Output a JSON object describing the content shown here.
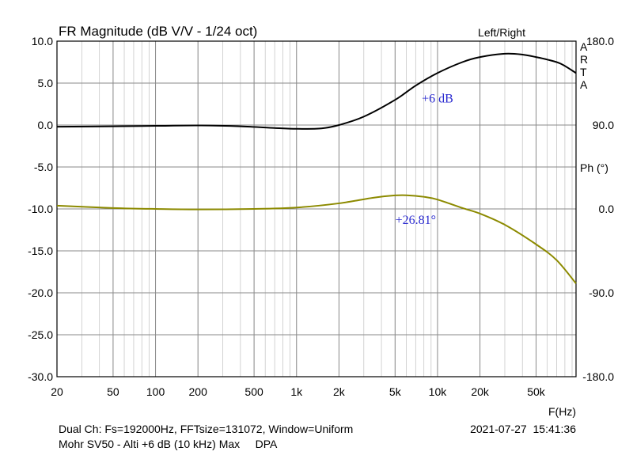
{
  "chart_data": {
    "type": "line",
    "title": "FR Magnitude (dB V/V - 1/24 oct)",
    "legend": "Left/Right",
    "brand": "ARTA",
    "xlabel": "F(Hz)",
    "xscale": "log",
    "xlim": [
      20,
      96000
    ],
    "x_ticks": [
      {
        "value": 20,
        "label": "20"
      },
      {
        "value": 50,
        "label": "50"
      },
      {
        "value": 100,
        "label": "100"
      },
      {
        "value": 200,
        "label": "200"
      },
      {
        "value": 500,
        "label": "500"
      },
      {
        "value": 1000,
        "label": "1k"
      },
      {
        "value": 2000,
        "label": "2k"
      },
      {
        "value": 5000,
        "label": "5k"
      },
      {
        "value": 10000,
        "label": "10k"
      },
      {
        "value": 20000,
        "label": "20k"
      },
      {
        "value": 50000,
        "label": "50k"
      }
    ],
    "ylim": [
      -30,
      10
    ],
    "y_ticks": [
      "10.0",
      "5.0",
      "0.0",
      "-5.0",
      "-10.0",
      "-15.0",
      "-20.0",
      "-25.0",
      "-30.0"
    ],
    "y2label": "Ph (°)",
    "y2lim": [
      -180,
      180
    ],
    "y2_ticks": [
      "180.0",
      "90.0",
      "0.0",
      "-90.0",
      "-180.0"
    ],
    "grid": true,
    "series": [
      {
        "name": "magnitude",
        "axis": "left",
        "color": "#000000",
        "points": [
          [
            20,
            -0.2
          ],
          [
            50,
            -0.15
          ],
          [
            100,
            -0.1
          ],
          [
            200,
            -0.05
          ],
          [
            400,
            -0.15
          ],
          [
            700,
            -0.35
          ],
          [
            1000,
            -0.45
          ],
          [
            1500,
            -0.4
          ],
          [
            2000,
            0.0
          ],
          [
            3000,
            1.0
          ],
          [
            5000,
            3.0
          ],
          [
            7000,
            4.7
          ],
          [
            10000,
            6.2
          ],
          [
            15000,
            7.5
          ],
          [
            20000,
            8.1
          ],
          [
            30000,
            8.5
          ],
          [
            40000,
            8.4
          ],
          [
            50000,
            8.1
          ],
          [
            60000,
            7.8
          ],
          [
            75000,
            7.3
          ],
          [
            96000,
            6.2
          ]
        ]
      },
      {
        "name": "phase",
        "axis": "right",
        "color": "#8c8a00",
        "points": [
          [
            20,
            3.5
          ],
          [
            50,
            1.0
          ],
          [
            100,
            0.0
          ],
          [
            200,
            -0.5
          ],
          [
            500,
            0.0
          ],
          [
            1000,
            1.5
          ],
          [
            2000,
            6.0
          ],
          [
            3500,
            12.0
          ],
          [
            5000,
            14.5
          ],
          [
            6000,
            14.7
          ],
          [
            8000,
            13.0
          ],
          [
            10000,
            10.0
          ],
          [
            15000,
            1.0
          ],
          [
            20000,
            -5.0
          ],
          [
            30000,
            -17.0
          ],
          [
            50000,
            -38.0
          ],
          [
            70000,
            -55.0
          ],
          [
            96000,
            -80.0
          ]
        ]
      }
    ],
    "annotations": [
      {
        "text": "+6 dB",
        "x": 10000,
        "y": 2.7,
        "axis": "left",
        "color": "#2a2ad0"
      },
      {
        "text": "+26.81°",
        "x": 7000,
        "y": -16,
        "axis": "right",
        "color": "#2a2ad0"
      }
    ]
  },
  "footer": {
    "line1": "Dual Ch: Fs=192000Hz, FFTsize=131072, Window=Uniform",
    "line2": "Mohr SV50 - Alti +6 dB (10 kHz) Max     DPA",
    "timestamp": "2021-07-27  15:41:36"
  }
}
